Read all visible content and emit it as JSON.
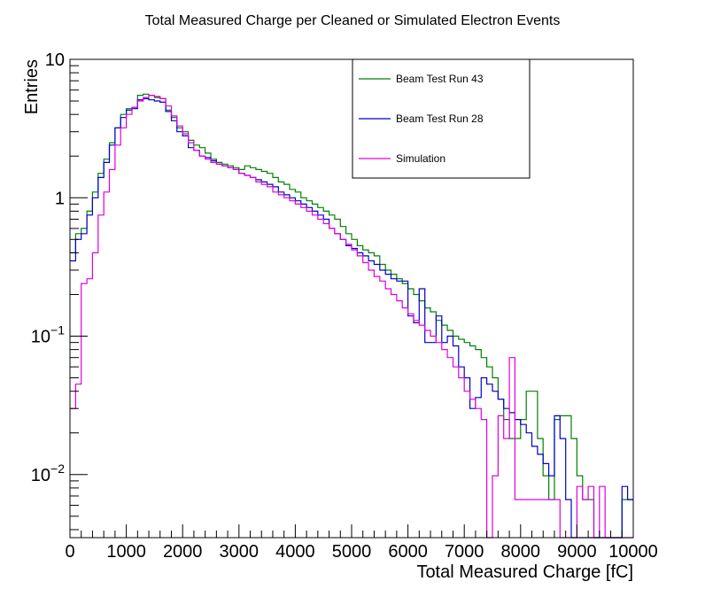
{
  "chart_data": {
    "type": "line",
    "style": "step-histogram",
    "title": "Total Measured Charge per Cleaned or Simulated Electron Events",
    "xlabel": "Total  Measured Charge [fC]",
    "ylabel": "Entries",
    "xlim": [
      0,
      10000
    ],
    "ylim": [
      0.0035,
      10
    ],
    "y_scale": "log",
    "grid": false,
    "legend_position": "top-right",
    "x_ticks": [
      "0",
      "1000",
      "2000",
      "3000",
      "4000",
      "5000",
      "6000",
      "7000",
      "8000",
      "9000",
      "10000"
    ],
    "y_ticks": [
      {
        "value": 0.01,
        "base": "10",
        "exp": "−2"
      },
      {
        "value": 0.1,
        "base": "10",
        "exp": "−1"
      },
      {
        "value": 1,
        "base": "1",
        "exp": ""
      },
      {
        "value": 10,
        "base": "10",
        "exp": ""
      }
    ],
    "bin_width": 100,
    "series": [
      {
        "name": "Beam Test Run 43",
        "color": "#008000",
        "values": [
          0.4,
          0.55,
          0.6,
          0.8,
          1.1,
          1.5,
          1.9,
          2.5,
          3.2,
          4.0,
          4.4,
          4.5,
          5.5,
          5.6,
          5.5,
          5.3,
          5.2,
          4.3,
          3.8,
          3.2,
          3.0,
          2.6,
          2.4,
          2.3,
          2.1,
          1.9,
          1.8,
          1.75,
          1.7,
          1.65,
          1.6,
          1.7,
          1.65,
          1.6,
          1.55,
          1.5,
          1.4,
          1.3,
          1.25,
          1.15,
          1.1,
          1.0,
          0.95,
          0.9,
          0.85,
          0.8,
          0.75,
          0.7,
          0.62,
          0.55,
          0.5,
          0.45,
          0.42,
          0.4,
          0.38,
          0.33,
          0.3,
          0.28,
          0.26,
          0.24,
          0.22,
          0.2,
          0.18,
          0.16,
          0.15,
          0.13,
          0.12,
          0.11,
          0.1,
          0.095,
          0.09,
          0.085,
          0.08,
          0.07,
          0.06,
          0.05,
          0.035,
          0.025,
          0.0182,
          0.0182,
          0.025,
          0.04,
          0.04,
          0.0182,
          0.0098,
          0.0066,
          0.025,
          0.0266,
          0.0266,
          0.0182,
          0.0098,
          0.0066,
          0.0066,
          0.0035,
          0.0035,
          0.0035,
          0.0035,
          0.0035,
          0.0066,
          0.0066
        ]
      },
      {
        "name": "Beam Test Run 28",
        "color": "#0000cc",
        "values": [
          0.35,
          0.5,
          0.55,
          0.75,
          1.0,
          1.4,
          1.8,
          2.4,
          3.2,
          3.8,
          4.3,
          4.4,
          5.1,
          5.2,
          5.1,
          5.0,
          4.9,
          4.2,
          3.6,
          3.0,
          2.8,
          2.3,
          2.2,
          2.0,
          1.95,
          1.85,
          1.75,
          1.7,
          1.65,
          1.6,
          1.5,
          1.45,
          1.4,
          1.35,
          1.3,
          1.25,
          1.2,
          1.1,
          1.05,
          1.0,
          0.95,
          0.9,
          0.85,
          0.8,
          0.75,
          0.7,
          0.6,
          0.55,
          0.5,
          0.45,
          0.43,
          0.4,
          0.38,
          0.35,
          0.33,
          0.3,
          0.28,
          0.26,
          0.25,
          0.25,
          0.14,
          0.125,
          0.22,
          0.09,
          0.09,
          0.14,
          0.09,
          0.1,
          0.085,
          0.06,
          0.05,
          0.03,
          0.036,
          0.05,
          0.045,
          0.04,
          0.035,
          0.03,
          0.028,
          0.025,
          0.023,
          0.02,
          0.016,
          0.014,
          0.012,
          0.0098,
          0.0266,
          0.0182,
          0.0066,
          0.0035,
          0.0035,
          0.0035,
          0.0035,
          0.0035,
          0.0035,
          0.0035,
          0.0035,
          0.0035,
          0.0082,
          0.0066
        ]
      },
      {
        "name": "Simulation",
        "color": "#dd00dd",
        "values": [
          0.03,
          0.045,
          0.24,
          0.26,
          0.4,
          0.75,
          1.1,
          1.6,
          2.4,
          3.2,
          4.0,
          4.5,
          5.0,
          5.3,
          5.5,
          5.4,
          5.2,
          4.6,
          3.9,
          3.3,
          2.9,
          2.5,
          2.2,
          2.0,
          1.9,
          1.8,
          1.75,
          1.7,
          1.65,
          1.6,
          1.5,
          1.45,
          1.4,
          1.3,
          1.25,
          1.2,
          1.1,
          1.05,
          1.0,
          0.95,
          0.9,
          0.85,
          0.8,
          0.75,
          0.7,
          0.65,
          0.6,
          0.55,
          0.5,
          0.46,
          0.42,
          0.38,
          0.34,
          0.3,
          0.27,
          0.25,
          0.22,
          0.2,
          0.18,
          0.16,
          0.145,
          0.13,
          0.12,
          0.11,
          0.1,
          0.09,
          0.08,
          0.07,
          0.06,
          0.05,
          0.04,
          0.035,
          0.03,
          0.025,
          0.003,
          0.0098,
          0.0266,
          0.0182,
          0.07,
          0.0066,
          0.0066,
          0.0066,
          0.0066,
          0.0066,
          0.0066,
          0.0066,
          0.0066,
          0.003,
          0.003,
          0.003,
          0.0082,
          0.0066,
          0.0082,
          0.003,
          0.0082,
          0.003,
          0.003,
          0.003,
          0.003,
          0.003
        ]
      }
    ]
  }
}
